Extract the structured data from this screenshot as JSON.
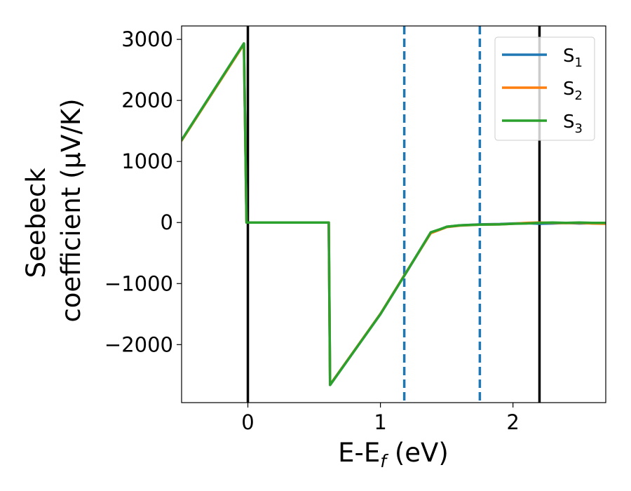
{
  "chart_data": {
    "type": "line",
    "xlabel": {
      "main": "E-E",
      "sub": "f",
      "unit": " (eV)"
    },
    "ylabel": {
      "line1": "Seebeck",
      "line2": "coefficient  (μV/K)"
    },
    "xlim": [
      -0.5,
      2.7
    ],
    "ylim": [
      -2950,
      3220
    ],
    "x_ticks": [
      0,
      1,
      2
    ],
    "x_tick_labels": [
      "0",
      "1",
      "2"
    ],
    "y_ticks": [
      3000,
      2000,
      1000,
      0,
      -1000,
      -2000
    ],
    "y_tick_labels": [
      "3000",
      "2000",
      "1000",
      "0",
      "−1000",
      "−2000"
    ],
    "grid": false,
    "legend_position": "top-right",
    "series": [
      {
        "name": "S",
        "sub": "1",
        "color": "#1f77b4",
        "points": [
          [
            -0.5,
            1350
          ],
          [
            -0.03,
            2930
          ],
          [
            -0.01,
            0
          ],
          [
            0.61,
            0
          ],
          [
            0.62,
            -2660
          ],
          [
            1.0,
            -1500
          ],
          [
            1.2,
            -800
          ],
          [
            1.38,
            -170
          ],
          [
            1.5,
            -70
          ],
          [
            1.6,
            -45
          ],
          [
            1.75,
            -30
          ],
          [
            1.9,
            -25
          ],
          [
            2.0,
            -15
          ],
          [
            2.1,
            -10
          ],
          [
            2.2,
            -20
          ],
          [
            2.3,
            -15
          ],
          [
            2.4,
            -5
          ],
          [
            2.5,
            -15
          ],
          [
            2.6,
            -10
          ],
          [
            2.7,
            -10
          ]
        ]
      },
      {
        "name": "S",
        "sub": "2",
        "color": "#ff7f0e",
        "points": [
          [
            -0.5,
            1340
          ],
          [
            -0.03,
            2920
          ],
          [
            -0.01,
            0
          ],
          [
            0.61,
            0
          ],
          [
            0.62,
            -2655
          ],
          [
            1.0,
            -1495
          ],
          [
            1.2,
            -795
          ],
          [
            1.38,
            -175
          ],
          [
            1.5,
            -75
          ],
          [
            1.6,
            -50
          ],
          [
            1.75,
            -35
          ],
          [
            1.9,
            -30
          ],
          [
            2.0,
            -20
          ],
          [
            2.1,
            -5
          ],
          [
            2.2,
            0
          ],
          [
            2.3,
            -5
          ],
          [
            2.4,
            -10
          ],
          [
            2.5,
            -5
          ],
          [
            2.6,
            -15
          ],
          [
            2.7,
            -20
          ]
        ]
      },
      {
        "name": "S",
        "sub": "3",
        "color": "#2ca02c",
        "points": [
          [
            -0.5,
            1350
          ],
          [
            -0.03,
            2935
          ],
          [
            -0.01,
            0
          ],
          [
            0.61,
            0
          ],
          [
            0.62,
            -2660
          ],
          [
            1.0,
            -1500
          ],
          [
            1.2,
            -800
          ],
          [
            1.38,
            -160
          ],
          [
            1.45,
            -110
          ],
          [
            1.5,
            -70
          ],
          [
            1.6,
            -45
          ],
          [
            1.75,
            -35
          ],
          [
            1.9,
            -30
          ],
          [
            2.0,
            -20
          ],
          [
            2.1,
            -15
          ],
          [
            2.2,
            -5
          ],
          [
            2.3,
            0
          ],
          [
            2.4,
            -5
          ],
          [
            2.5,
            0
          ],
          [
            2.6,
            -5
          ],
          [
            2.7,
            -5
          ]
        ]
      }
    ],
    "vertical_lines": [
      {
        "x": 0.0,
        "style": "solid",
        "color": "#000000"
      },
      {
        "x": 2.2,
        "style": "solid",
        "color": "#000000"
      },
      {
        "x": 1.18,
        "style": "dashed",
        "color": "#1f77b4"
      },
      {
        "x": 1.75,
        "style": "dashed",
        "color": "#1f77b4"
      }
    ]
  }
}
